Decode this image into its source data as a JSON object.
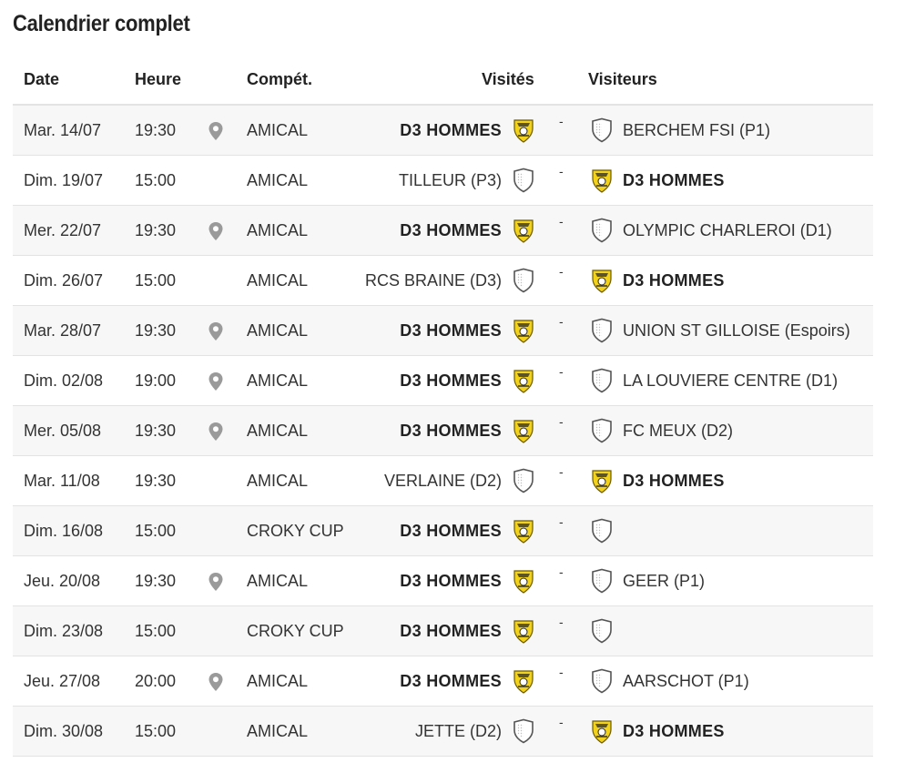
{
  "page": {
    "title": "Calendrier complet"
  },
  "headers": {
    "date": "Date",
    "time": "Heure",
    "competition": "Compét.",
    "home": "Visités",
    "away": "Visiteurs"
  },
  "colors": {
    "team_badge": "#f2d21b",
    "row_alt": "#f7f7f7",
    "separator": "#e3e3e3"
  },
  "rows": [
    {
      "date": "Mar. 14/07",
      "time": "19:30",
      "location": true,
      "competition": "AMICAL",
      "home": "D3 HOMMES",
      "home_own": true,
      "away": "BERCHEM FSI (P1)",
      "away_own": false
    },
    {
      "date": "Dim. 19/07",
      "time": "15:00",
      "location": false,
      "competition": "AMICAL",
      "home": "TILLEUR (P3)",
      "home_own": false,
      "away": "D3 HOMMES",
      "away_own": true
    },
    {
      "date": "Mer. 22/07",
      "time": "19:30",
      "location": true,
      "competition": "AMICAL",
      "home": "D3 HOMMES",
      "home_own": true,
      "away": "OLYMPIC CHARLEROI (D1)",
      "away_own": false
    },
    {
      "date": "Dim. 26/07",
      "time": "15:00",
      "location": false,
      "competition": "AMICAL",
      "home": "RCS BRAINE (D3)",
      "home_own": false,
      "away": "D3 HOMMES",
      "away_own": true
    },
    {
      "date": "Mar. 28/07",
      "time": "19:30",
      "location": true,
      "competition": "AMICAL",
      "home": "D3 HOMMES",
      "home_own": true,
      "away": "UNION ST GILLOISE (Espoirs)",
      "away_own": false
    },
    {
      "date": "Dim. 02/08",
      "time": "19:00",
      "location": true,
      "competition": "AMICAL",
      "home": "D3 HOMMES",
      "home_own": true,
      "away": "LA LOUVIERE CENTRE (D1)",
      "away_own": false
    },
    {
      "date": "Mer. 05/08",
      "time": "19:30",
      "location": true,
      "competition": "AMICAL",
      "home": "D3 HOMMES",
      "home_own": true,
      "away": "FC MEUX (D2)",
      "away_own": false
    },
    {
      "date": "Mar. 11/08",
      "time": "19:30",
      "location": false,
      "competition": "AMICAL",
      "home": "VERLAINE (D2)",
      "home_own": false,
      "away": "D3 HOMMES",
      "away_own": true
    },
    {
      "date": "Dim. 16/08",
      "time": "15:00",
      "location": false,
      "competition": "CROKY CUP",
      "home": "D3 HOMMES",
      "home_own": true,
      "away": "",
      "away_own": false
    },
    {
      "date": "Jeu. 20/08",
      "time": "19:30",
      "location": true,
      "competition": "AMICAL",
      "home": "D3 HOMMES",
      "home_own": true,
      "away": "GEER (P1)",
      "away_own": false
    },
    {
      "date": "Dim. 23/08",
      "time": "15:00",
      "location": false,
      "competition": "CROKY CUP",
      "home": "D3 HOMMES",
      "home_own": true,
      "away": "",
      "away_own": false
    },
    {
      "date": "Jeu. 27/08",
      "time": "20:00",
      "location": true,
      "competition": "AMICAL",
      "home": "D3 HOMMES",
      "home_own": true,
      "away": "AARSCHOT (P1)",
      "away_own": false
    },
    {
      "date": "Dim. 30/08",
      "time": "15:00",
      "location": false,
      "competition": "AMICAL",
      "home": "JETTE (D2)",
      "home_own": false,
      "away": "D3 HOMMES",
      "away_own": true
    }
  ],
  "score_separator": "-"
}
